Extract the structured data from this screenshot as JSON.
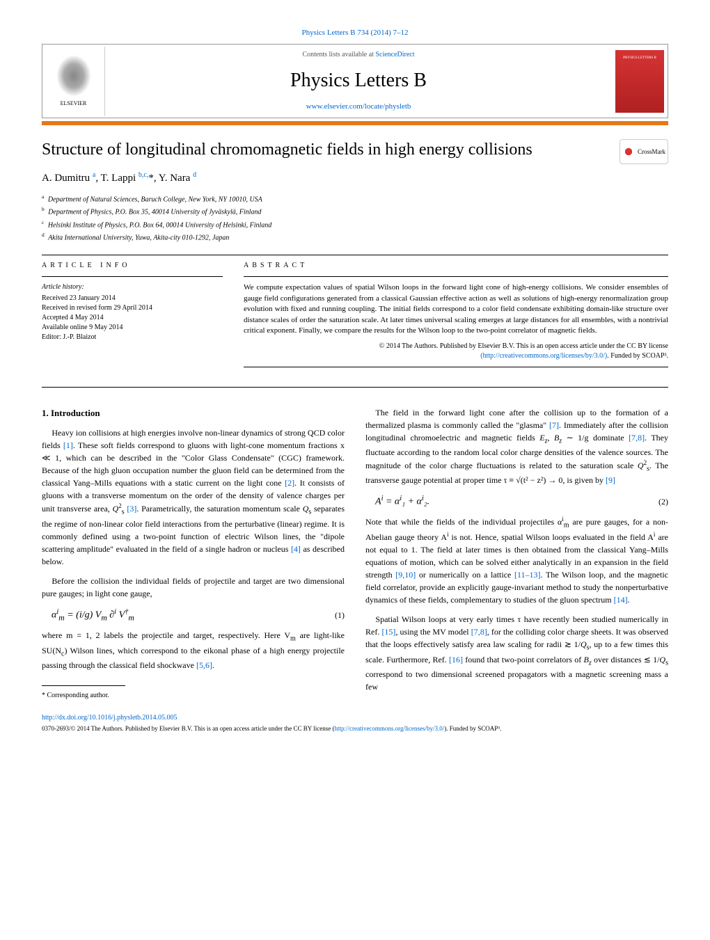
{
  "header": {
    "journal_ref_prefix": "Physics Letters B 734 (2014) 7–12",
    "contents_line_prefix": "Contents lists available at ",
    "contents_link": "ScienceDirect",
    "journal_name": "Physics Letters B",
    "journal_url": "www.elsevier.com/locate/physletb",
    "publisher": "ELSEVIER",
    "cover_label": "PHYSICS LETTERS B"
  },
  "colors": {
    "orange_bar": "#E67817",
    "link": "#0066cc",
    "cover_top": "#d63333",
    "cover_bottom": "#b02020"
  },
  "title": "Structure of longitudinal chromomagnetic fields in high energy collisions",
  "crossmark_label": "CrossMark",
  "authors_html": "A. Dumitru <sup>a</sup>, T. Lappi <sup>b,c,</sup>*, Y. Nara <sup>d</sup>",
  "affiliations": [
    {
      "key": "a",
      "text": "Department of Natural Sciences, Baruch College, New York, NY 10010, USA"
    },
    {
      "key": "b",
      "text": "Department of Physics, P.O. Box 35, 40014 University of Jyväskylä, Finland"
    },
    {
      "key": "c",
      "text": "Helsinki Institute of Physics, P.O. Box 64, 00014 University of Helsinki, Finland"
    },
    {
      "key": "d",
      "text": "Akita International University, Yuwa, Akita-city 010-1292, Japan"
    }
  ],
  "article_info": {
    "heading": "ARTICLE INFO",
    "history_label": "Article history:",
    "lines": [
      "Received 23 January 2014",
      "Received in revised form 29 April 2014",
      "Accepted 4 May 2014",
      "Available online 9 May 2014",
      "Editor: J.-P. Blaizot"
    ]
  },
  "abstract": {
    "heading": "ABSTRACT",
    "text": "We compute expectation values of spatial Wilson loops in the forward light cone of high-energy collisions. We consider ensembles of gauge field configurations generated from a classical Gaussian effective action as well as solutions of high-energy renormalization group evolution with fixed and running coupling. The initial fields correspond to a color field condensate exhibiting domain-like structure over distance scales of order the saturation scale. At later times universal scaling emerges at large distances for all ensembles, with a nontrivial critical exponent. Finally, we compare the results for the Wilson loop to the two-point correlator of magnetic fields.",
    "copyright_line": "© 2014 The Authors. Published by Elsevier B.V. This is an open access article under the CC BY license",
    "license_url": "(http://creativecommons.org/licenses/by/3.0/)",
    "funded": ". Funded by SCOAP³."
  },
  "section1": {
    "heading": "1. Introduction",
    "p1": "Heavy ion collisions at high energies involve non-linear dynamics of strong QCD color fields [1]. These soft fields correspond to gluons with light-cone momentum fractions x ≪ 1, which can be described in the \"Color Glass Condensate\" (CGC) framework. Because of the high gluon occupation number the gluon field can be determined from the classical Yang–Mills equations with a static current on the light cone [2]. It consists of gluons with a transverse momentum on the order of the density of valence charges per unit transverse area, Q²ₛ [3]. Parametrically, the saturation momentum scale Qₛ separates the regime of non-linear color field interactions from the perturbative (linear) regime. It is commonly defined using a two-point function of electric Wilson lines, the \"dipole scattering amplitude\" evaluated in the field of a single hadron or nucleus [4] as described below.",
    "p2": "Before the collision the individual fields of projectile and target are two dimensional pure gauges; in light cone gauge,",
    "eq1": "α<sup>i</sup><sub>m</sub> = (i/g) V<sub>m</sub> ∂<sup>i</sup> V<sup>†</sup><sub>m</sub>",
    "eq1_num": "(1)",
    "p3": "where m = 1, 2 labels the projectile and target, respectively. Here V<sub>m</sub> are light-like SU(N<sub>c</sub>) Wilson lines, which correspond to the eikonal phase of a high energy projectile passing through the classical field shockwave [5,6].",
    "p4": "The field in the forward light cone after the collision up to the formation of a thermalized plasma is commonly called the \"glasma\" [7]. Immediately after the collision longitudinal chromoelectric and magnetic fields E<sub>z</sub>, B<sub>z</sub> ∼ 1/g dominate [7,8]. They fluctuate according to the random local color charge densities of the valence sources. The magnitude of the color charge fluctuations is related to the saturation scale Q²ₛ. The transverse gauge potential at proper time τ ≡ √(t² − z²) → 0, is given by [9]",
    "eq2": "A<sup>i</sup> = α<sup>i</sup>₁ + α<sup>i</sup>₂.",
    "eq2_num": "(2)",
    "p5": "Note that while the fields of the individual projectiles α<sup>i</sup><sub>m</sub> are pure gauges, for a non-Abelian gauge theory A<sup>i</sup> is not. Hence, spatial Wilson loops evaluated in the field A<sup>i</sup> are not equal to 1. The field at later times is then obtained from the classical Yang–Mills equations of motion, which can be solved either analytically in an expansion in the field strength [9,10] or numerically on a lattice [11–13]. The Wilson loop, and the magnetic field correlator, provide an explicitly gauge-invariant method to study the nonperturbative dynamics of these fields, complementary to studies of the gluon spectrum [14].",
    "p6": "Spatial Wilson loops at very early times τ have recently been studied numerically in Ref. [15], using the MV model [7,8], for the colliding color charge sheets. It was observed that the loops effectively satisfy area law scaling for radii ≳ 1/Qₛ, up to a few times this scale. Furthermore, Ref. [16] found that two-point correlators of B<sub>z</sub> over distances ≲ 1/Qₛ correspond to two dimensional screened propagators with a magnetic screening mass a few"
  },
  "footnote": {
    "corresponding": "* Corresponding author."
  },
  "footer": {
    "doi": "http://dx.doi.org/10.1016/j.physletb.2014.05.005",
    "issn_line": "0370-2693/© 2014 The Authors. Published by Elsevier B.V. This is an open access article under the CC BY license (",
    "license_url": "http://creativecommons.org/licenses/by/3.0/",
    "funded": "). Funded by SCOAP³."
  }
}
